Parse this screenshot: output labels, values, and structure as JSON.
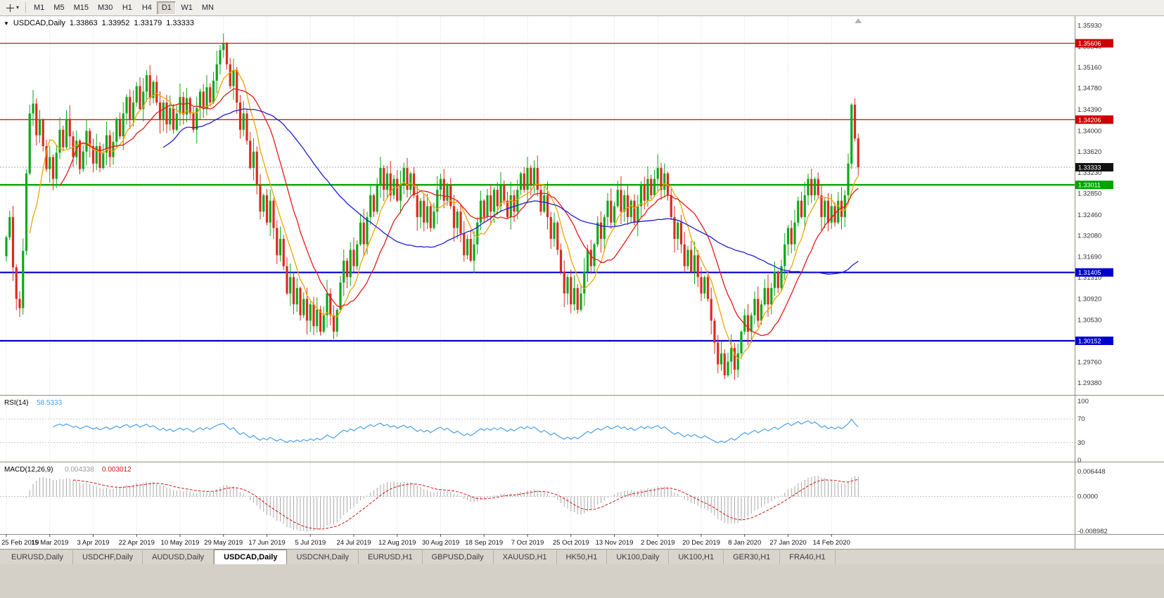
{
  "toolbar": {
    "timeframes": [
      "M1",
      "M5",
      "M15",
      "M30",
      "H1",
      "H4",
      "D1",
      "W1",
      "MN"
    ],
    "active_timeframe": "D1",
    "cursor_tool_icon": "crosshair-cursor-icon"
  },
  "chart_header": {
    "symbol_label": "USDCAD,Daily",
    "open": "1.33863",
    "high": "1.33952",
    "low": "1.33179",
    "close": "1.33333"
  },
  "price_axis": {
    "min": 1.2925,
    "max": 1.36,
    "ticks": [
      "1.35930",
      "1.35540",
      "1.35160",
      "1.34780",
      "1.34390",
      "1.34000",
      "1.33620",
      "1.33230",
      "1.32850",
      "1.32460",
      "1.32080",
      "1.31690",
      "1.31310",
      "1.30920",
      "1.30530",
      "1.30140",
      "1.29760",
      "1.29380"
    ]
  },
  "hlines": [
    {
      "value": 1.35606,
      "label": "1.35606",
      "line_color": "#cc0000",
      "tag_color": "#cc0000",
      "style": "solid",
      "width": 1.2,
      "name": "resistance-line-upper"
    },
    {
      "value": 1.34206,
      "label": "1.34206",
      "line_color": "#cc0000",
      "tag_color": "#cc0000",
      "style": "solid",
      "width": 1.2,
      "name": "resistance-line-lower"
    },
    {
      "value": 1.33333,
      "label": "1.33333",
      "line_color": "#aaaaaa",
      "tag_color": "#111111",
      "style": "dotted",
      "width": 1,
      "name": "current-price-line"
    },
    {
      "value": 1.33011,
      "label": "1.33011",
      "line_color": "#00a400",
      "tag_color": "#00a400",
      "style": "solid",
      "width": 2.4,
      "name": "support-line-green"
    },
    {
      "value": 1.31405,
      "label": "1.31405",
      "line_color": "#0000cc",
      "tag_color": "#0000cc",
      "style": "solid",
      "width": 2.2,
      "name": "support-line-blue-upper"
    },
    {
      "value": 1.30152,
      "label": "1.30152",
      "line_color": "#0000cc",
      "tag_color": "#0000cc",
      "style": "solid",
      "width": 2.2,
      "name": "support-line-blue-lower"
    }
  ],
  "date_axis": {
    "candles_per_label": 13,
    "labels": [
      "25 Feb 2019",
      "15 Mar 2019",
      "3 Apr 2019",
      "22 Apr 2019",
      "10 May 2019",
      "29 May 2019",
      "17 Jun 2019",
      "5 Jul 2019",
      "24 Jul 2019",
      "12 Aug 2019",
      "30 Aug 2019",
      "18 Sep 2019",
      "7 Oct 2019",
      "25 Oct 2019",
      "13 Nov 2019",
      "2 Dec 2019",
      "20 Dec 2019",
      "8 Jan 2020",
      "27 Jan 2020",
      "14 Feb 2020"
    ]
  },
  "chart_data": {
    "type": "candlestick",
    "symbol": "USDCAD",
    "timeframe": "Daily",
    "up_color": "#0ba918",
    "down_color": "#dd2a1e",
    "current_bar": {
      "open": 1.33863,
      "high": 1.33952,
      "low": 1.33179,
      "close": 1.33333
    },
    "moving_averages": [
      {
        "name": "fast-ma",
        "period": 8,
        "color": "#efa400"
      },
      {
        "name": "medium-ma",
        "period": 17,
        "color": "#e61717"
      },
      {
        "name": "slow-ma",
        "period": 48,
        "color": "#1d1dd6"
      }
    ],
    "closes": [
      1.3205,
      1.3242,
      1.315,
      1.3092,
      1.3075,
      1.318,
      1.3322,
      1.3432,
      1.345,
      1.3392,
      1.342,
      1.3372,
      1.333,
      1.3352,
      1.3312,
      1.336,
      1.3402,
      1.337,
      1.3422,
      1.339,
      1.3352,
      1.3382,
      1.333,
      1.3362,
      1.34,
      1.3372,
      1.334,
      1.3372,
      1.3332,
      1.336,
      1.3392,
      1.3352,
      1.338,
      1.3422,
      1.339,
      1.3432,
      1.3462,
      1.342,
      1.3452,
      1.3482,
      1.344,
      1.3472,
      1.3502,
      1.346,
      1.349,
      1.3452,
      1.342,
      1.3452,
      1.3412,
      1.3442,
      1.3402,
      1.3432,
      1.3462,
      1.343,
      1.346,
      1.3432,
      1.3402,
      1.3442,
      1.3472,
      1.344,
      1.348,
      1.3452,
      1.3492,
      1.3522,
      1.3548,
      1.356,
      1.3522,
      1.3482,
      1.3512,
      1.3452,
      1.3402,
      1.3432,
      1.3382,
      1.3332,
      1.3362,
      1.3302,
      1.3252,
      1.3282,
      1.3232,
      1.3272,
      1.3222,
      1.3172,
      1.3202,
      1.3152,
      1.3102,
      1.3132,
      1.3082,
      1.3112,
      1.3062,
      1.3092,
      1.3052,
      1.3082,
      1.3042,
      1.3072,
      1.3032,
      1.3062,
      1.3102,
      1.3062,
      1.3032,
      1.3072,
      1.3122,
      1.3162,
      1.3132,
      1.3182,
      1.3152,
      1.3192,
      1.3232,
      1.3192,
      1.3242,
      1.3282,
      1.3252,
      1.3302,
      1.3332,
      1.3292,
      1.3322,
      1.3282,
      1.3312,
      1.3272,
      1.3302,
      1.3332,
      1.3292,
      1.3322,
      1.3282,
      1.3242,
      1.3272,
      1.3232,
      1.3262,
      1.3222,
      1.3252,
      1.3292,
      1.3312,
      1.3272,
      1.3302,
      1.3262,
      1.3222,
      1.3252,
      1.3212,
      1.3172,
      1.3202,
      1.3162,
      1.3192,
      1.3232,
      1.3272,
      1.3242,
      1.3282,
      1.3252,
      1.3292,
      1.3262,
      1.3302,
      1.3272,
      1.3242,
      1.3282,
      1.3252,
      1.3292,
      1.3322,
      1.3292,
      1.3332,
      1.3302,
      1.3332,
      1.3292,
      1.3252,
      1.3282,
      1.3242,
      1.3202,
      1.3232,
      1.3182,
      1.3142,
      1.3102,
      1.3132,
      1.3082,
      1.3112,
      1.3072,
      1.3102,
      1.3142,
      1.3182,
      1.3152,
      1.3192,
      1.3232,
      1.3202,
      1.3242,
      1.3272,
      1.3232,
      1.3262,
      1.3292,
      1.3252,
      1.3282,
      1.3242,
      1.3272,
      1.3232,
      1.3262,
      1.3302,
      1.3272,
      1.3312,
      1.3282,
      1.3312,
      1.3332,
      1.3292,
      1.3322,
      1.3282,
      1.3242,
      1.3202,
      1.3232,
      1.3192,
      1.3152,
      1.3182,
      1.3142,
      1.3172,
      1.3132,
      1.3102,
      1.3132,
      1.3092,
      1.3052,
      1.3012,
      1.2972,
      1.2992,
      1.2952,
      1.2977,
      1.3002,
      1.2962,
      1.2992,
      1.3032,
      1.3062,
      1.3032,
      1.3062,
      1.3092,
      1.3052,
      1.3082,
      1.3112,
      1.3082,
      1.3112,
      1.3142,
      1.3112,
      1.3152,
      1.3192,
      1.3222,
      1.3192,
      1.3232,
      1.3272,
      1.3242,
      1.3282,
      1.3312,
      1.3282,
      1.3312,
      1.3282,
      1.3242,
      1.3272,
      1.3232,
      1.3262,
      1.3232,
      1.3272,
      1.3242,
      1.3282,
      1.334,
      1.3448,
      1.3386,
      1.3333
    ]
  },
  "rsi_panel": {
    "label": "RSI(14)",
    "value": "58.5333",
    "period": 14,
    "levels": [
      "100",
      "70",
      "30",
      "0"
    ],
    "dotted_levels": [
      70,
      30
    ],
    "line_color": "#4aa0e8"
  },
  "macd_panel": {
    "label": "MACD(12,26,9)",
    "macd_value": "0.004338",
    "signal_value": "0.003012",
    "periods": [
      12,
      26,
      9
    ],
    "axis_max": "0.006448",
    "axis_zero": "0.0000",
    "axis_min": "-0.008982",
    "hist_color": "#a9a9a9",
    "signal_color": "#d81414",
    "macd_value_color": "#9a9a9a"
  },
  "bottom_tabs": {
    "active": "USDCAD,Daily",
    "tabs": [
      "EURUSD,Daily",
      "USDCHF,Daily",
      "AUDUSD,Daily",
      "USDCAD,Daily",
      "USDCNH,Daily",
      "EURUSD,H1",
      "GBPUSD,Daily",
      "XAUUSD,H1",
      "HK50,H1",
      "UK100,Daily",
      "UK100,H1",
      "GER30,H1",
      "FRA40,H1"
    ]
  }
}
